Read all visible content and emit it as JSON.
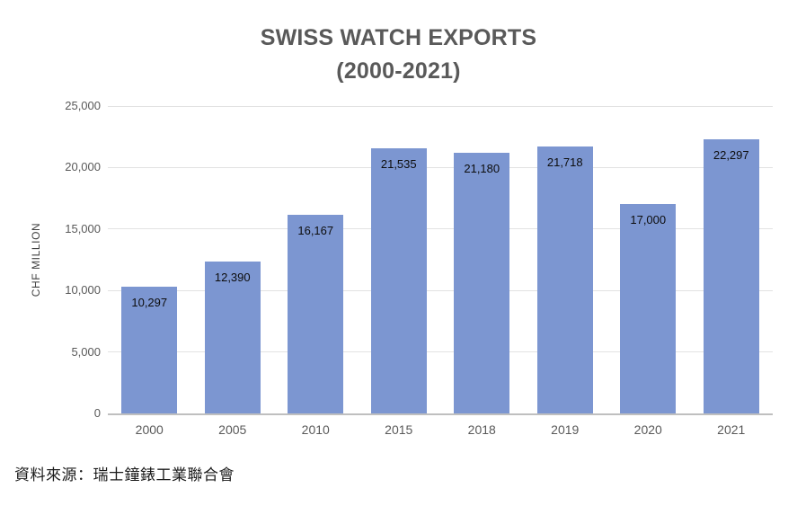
{
  "chart": {
    "title_line1": "SWISS WATCH EXPORTS",
    "title_line2": "(2000-2021)",
    "ylabel": "CHF MILLION"
  },
  "footer": {
    "source": "資料來源：瑞士鐘錶工業聯合會"
  },
  "chart_data": {
    "type": "bar",
    "title": "SWISS WATCH EXPORTS (2000-2021)",
    "categories": [
      "2000",
      "2005",
      "2010",
      "2015",
      "2018",
      "2019",
      "2020",
      "2021"
    ],
    "values": [
      10297,
      12390,
      16167,
      21535,
      21180,
      21718,
      17000,
      22297
    ],
    "data_labels": [
      "10,297",
      "12,390",
      "16,167",
      "21,535",
      "21,180",
      "21,718",
      "17,000",
      "22,297"
    ],
    "xlabel": "",
    "ylabel": "CHF MILLION",
    "ylim": [
      0,
      25000
    ],
    "yticks": [
      0,
      5000,
      10000,
      15000,
      20000,
      25000
    ],
    "ytick_labels": [
      "0",
      "5,000",
      "10,000",
      "15,000",
      "20,000",
      "25,000"
    ],
    "grid": true,
    "legend": false,
    "bar_color": "#7c96d1",
    "gridline_color": "#e2e2e2",
    "baseline_color": "#bfbfbf",
    "title_color": "#595959",
    "axis_text_color": "#595959",
    "data_label_color": "#0d0d0d"
  }
}
